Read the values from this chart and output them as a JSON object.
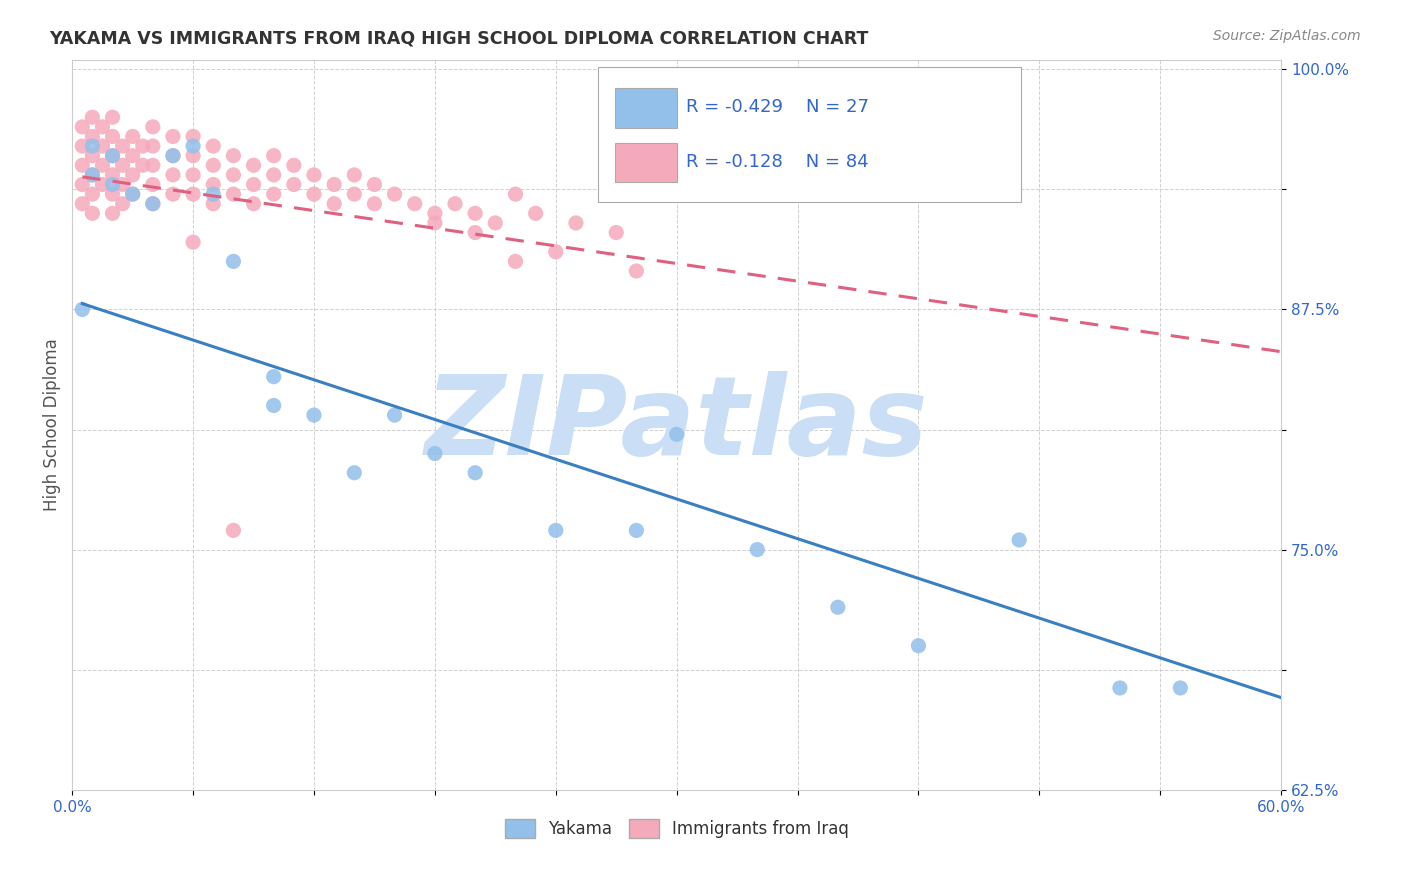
{
  "title": "YAKAMA VS IMMIGRANTS FROM IRAQ HIGH SCHOOL DIPLOMA CORRELATION CHART",
  "source": "Source: ZipAtlas.com",
  "ylabel": "High School Diploma",
  "xlim": [
    0.0,
    0.6
  ],
  "ylim": [
    0.625,
    1.005
  ],
  "xticks": [
    0.0,
    0.06,
    0.12,
    0.18,
    0.24,
    0.3,
    0.36,
    0.42,
    0.48,
    0.54,
    0.6
  ],
  "yticks": [
    0.625,
    0.6875,
    0.75,
    0.8125,
    0.875,
    0.9375,
    1.0
  ],
  "ytick_labels": [
    "62.5%",
    "",
    "75.0%",
    "",
    "87.5%",
    "",
    "100.0%"
  ],
  "blue_R": -0.429,
  "blue_N": 27,
  "pink_R": -0.128,
  "pink_N": 84,
  "blue_color": "#92C0EA",
  "pink_color": "#F5AABC",
  "blue_line_color": "#3A7FC1",
  "pink_line_color": "#E06080",
  "background_color": "#FFFFFF",
  "grid_color": "#CCCCCC",
  "watermark_color": "#CADFF5",
  "legend_color": "#3366CC",
  "blue_line_x0": 0.005,
  "blue_line_y0": 0.878,
  "blue_line_x1": 0.6,
  "blue_line_y1": 0.673,
  "pink_line_x0": 0.005,
  "pink_line_y0": 0.944,
  "pink_line_x1": 0.6,
  "pink_line_y1": 0.853,
  "blue_scatter_x": [
    0.005,
    0.01,
    0.01,
    0.02,
    0.02,
    0.03,
    0.04,
    0.05,
    0.06,
    0.07,
    0.08,
    0.1,
    0.12,
    0.14,
    0.16,
    0.18,
    0.2,
    0.24,
    0.28,
    0.3,
    0.34,
    0.38,
    0.42,
    0.47,
    0.52,
    0.55,
    0.1
  ],
  "blue_scatter_y": [
    0.875,
    0.96,
    0.945,
    0.955,
    0.94,
    0.935,
    0.93,
    0.955,
    0.96,
    0.935,
    0.9,
    0.84,
    0.82,
    0.79,
    0.82,
    0.8,
    0.79,
    0.76,
    0.76,
    0.81,
    0.75,
    0.72,
    0.7,
    0.755,
    0.678,
    0.678,
    0.825
  ],
  "pink_scatter_x": [
    0.005,
    0.005,
    0.005,
    0.005,
    0.005,
    0.01,
    0.01,
    0.01,
    0.01,
    0.01,
    0.01,
    0.015,
    0.015,
    0.015,
    0.015,
    0.02,
    0.02,
    0.02,
    0.02,
    0.02,
    0.02,
    0.025,
    0.025,
    0.025,
    0.025,
    0.03,
    0.03,
    0.03,
    0.03,
    0.035,
    0.035,
    0.04,
    0.04,
    0.04,
    0.04,
    0.04,
    0.05,
    0.05,
    0.05,
    0.05,
    0.06,
    0.06,
    0.06,
    0.06,
    0.07,
    0.07,
    0.07,
    0.07,
    0.08,
    0.08,
    0.08,
    0.09,
    0.09,
    0.09,
    0.1,
    0.1,
    0.1,
    0.11,
    0.11,
    0.12,
    0.12,
    0.13,
    0.13,
    0.14,
    0.14,
    0.15,
    0.15,
    0.16,
    0.17,
    0.18,
    0.19,
    0.2,
    0.21,
    0.22,
    0.23,
    0.25,
    0.27,
    0.28,
    0.22,
    0.24,
    0.18,
    0.2,
    0.06,
    0.08
  ],
  "pink_scatter_y": [
    0.97,
    0.96,
    0.95,
    0.94,
    0.93,
    0.975,
    0.965,
    0.955,
    0.945,
    0.935,
    0.925,
    0.97,
    0.96,
    0.95,
    0.94,
    0.975,
    0.965,
    0.955,
    0.945,
    0.935,
    0.925,
    0.96,
    0.95,
    0.94,
    0.93,
    0.965,
    0.955,
    0.945,
    0.935,
    0.96,
    0.95,
    0.97,
    0.96,
    0.95,
    0.94,
    0.93,
    0.965,
    0.955,
    0.945,
    0.935,
    0.965,
    0.955,
    0.945,
    0.935,
    0.96,
    0.95,
    0.94,
    0.93,
    0.955,
    0.945,
    0.935,
    0.95,
    0.94,
    0.93,
    0.955,
    0.945,
    0.935,
    0.95,
    0.94,
    0.945,
    0.935,
    0.94,
    0.93,
    0.945,
    0.935,
    0.94,
    0.93,
    0.935,
    0.93,
    0.925,
    0.93,
    0.925,
    0.92,
    0.935,
    0.925,
    0.92,
    0.915,
    0.895,
    0.9,
    0.905,
    0.92,
    0.915,
    0.91,
    0.76
  ]
}
